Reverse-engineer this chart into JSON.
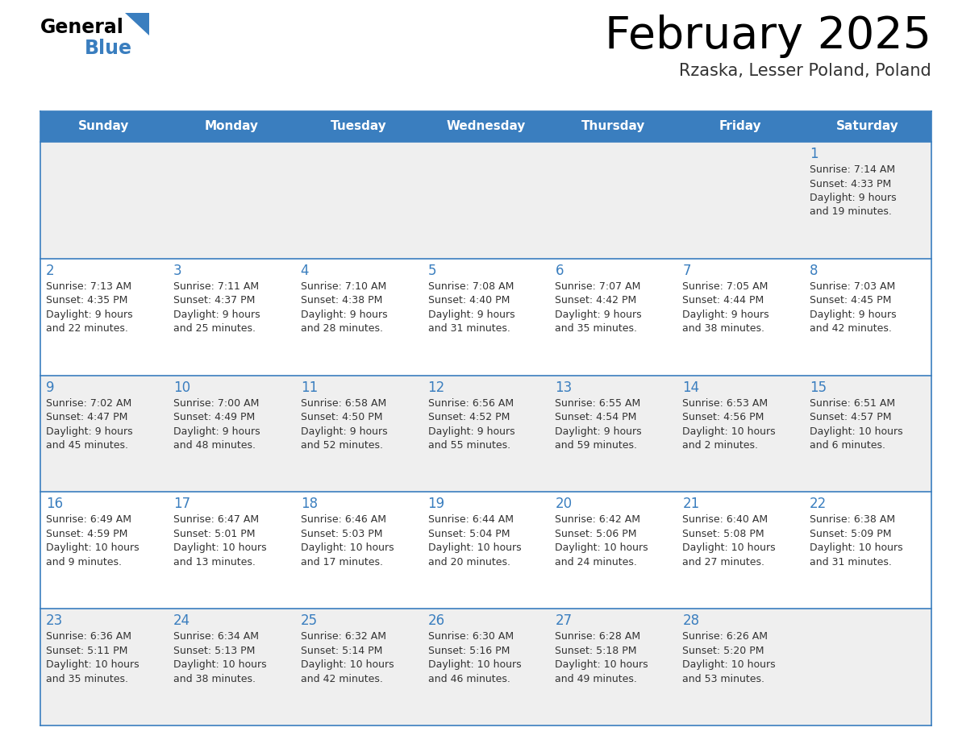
{
  "title": "February 2025",
  "subtitle": "Rzaska, Lesser Poland, Poland",
  "days_of_week": [
    "Sunday",
    "Monday",
    "Tuesday",
    "Wednesday",
    "Thursday",
    "Friday",
    "Saturday"
  ],
  "header_bg_color": "#3a7ebf",
  "header_text_color": "#ffffff",
  "border_color": "#3a7ebf",
  "text_color": "#333333",
  "day_number_color": "#3a7ebf",
  "title_color": "#000000",
  "subtitle_color": "#333333",
  "logo_general_color": "#000000",
  "logo_blue_color": "#3a7ebf",
  "row_bg_even": "#efefef",
  "row_bg_odd": "#ffffff",
  "calendar_data": [
    [
      null,
      null,
      null,
      null,
      null,
      null,
      {
        "day": "1",
        "sunrise": "7:14 AM",
        "sunset": "4:33 PM",
        "daylight_h": "9 hours",
        "daylight_m": "and 19 minutes."
      }
    ],
    [
      {
        "day": "2",
        "sunrise": "7:13 AM",
        "sunset": "4:35 PM",
        "daylight_h": "9 hours",
        "daylight_m": "and 22 minutes."
      },
      {
        "day": "3",
        "sunrise": "7:11 AM",
        "sunset": "4:37 PM",
        "daylight_h": "9 hours",
        "daylight_m": "and 25 minutes."
      },
      {
        "day": "4",
        "sunrise": "7:10 AM",
        "sunset": "4:38 PM",
        "daylight_h": "9 hours",
        "daylight_m": "and 28 minutes."
      },
      {
        "day": "5",
        "sunrise": "7:08 AM",
        "sunset": "4:40 PM",
        "daylight_h": "9 hours",
        "daylight_m": "and 31 minutes."
      },
      {
        "day": "6",
        "sunrise": "7:07 AM",
        "sunset": "4:42 PM",
        "daylight_h": "9 hours",
        "daylight_m": "and 35 minutes."
      },
      {
        "day": "7",
        "sunrise": "7:05 AM",
        "sunset": "4:44 PM",
        "daylight_h": "9 hours",
        "daylight_m": "and 38 minutes."
      },
      {
        "day": "8",
        "sunrise": "7:03 AM",
        "sunset": "4:45 PM",
        "daylight_h": "9 hours",
        "daylight_m": "and 42 minutes."
      }
    ],
    [
      {
        "day": "9",
        "sunrise": "7:02 AM",
        "sunset": "4:47 PM",
        "daylight_h": "9 hours",
        "daylight_m": "and 45 minutes."
      },
      {
        "day": "10",
        "sunrise": "7:00 AM",
        "sunset": "4:49 PM",
        "daylight_h": "9 hours",
        "daylight_m": "and 48 minutes."
      },
      {
        "day": "11",
        "sunrise": "6:58 AM",
        "sunset": "4:50 PM",
        "daylight_h": "9 hours",
        "daylight_m": "and 52 minutes."
      },
      {
        "day": "12",
        "sunrise": "6:56 AM",
        "sunset": "4:52 PM",
        "daylight_h": "9 hours",
        "daylight_m": "and 55 minutes."
      },
      {
        "day": "13",
        "sunrise": "6:55 AM",
        "sunset": "4:54 PM",
        "daylight_h": "9 hours",
        "daylight_m": "and 59 minutes."
      },
      {
        "day": "14",
        "sunrise": "6:53 AM",
        "sunset": "4:56 PM",
        "daylight_h": "10 hours",
        "daylight_m": "and 2 minutes."
      },
      {
        "day": "15",
        "sunrise": "6:51 AM",
        "sunset": "4:57 PM",
        "daylight_h": "10 hours",
        "daylight_m": "and 6 minutes."
      }
    ],
    [
      {
        "day": "16",
        "sunrise": "6:49 AM",
        "sunset": "4:59 PM",
        "daylight_h": "10 hours",
        "daylight_m": "and 9 minutes."
      },
      {
        "day": "17",
        "sunrise": "6:47 AM",
        "sunset": "5:01 PM",
        "daylight_h": "10 hours",
        "daylight_m": "and 13 minutes."
      },
      {
        "day": "18",
        "sunrise": "6:46 AM",
        "sunset": "5:03 PM",
        "daylight_h": "10 hours",
        "daylight_m": "and 17 minutes."
      },
      {
        "day": "19",
        "sunrise": "6:44 AM",
        "sunset": "5:04 PM",
        "daylight_h": "10 hours",
        "daylight_m": "and 20 minutes."
      },
      {
        "day": "20",
        "sunrise": "6:42 AM",
        "sunset": "5:06 PM",
        "daylight_h": "10 hours",
        "daylight_m": "and 24 minutes."
      },
      {
        "day": "21",
        "sunrise": "6:40 AM",
        "sunset": "5:08 PM",
        "daylight_h": "10 hours",
        "daylight_m": "and 27 minutes."
      },
      {
        "day": "22",
        "sunrise": "6:38 AM",
        "sunset": "5:09 PM",
        "daylight_h": "10 hours",
        "daylight_m": "and 31 minutes."
      }
    ],
    [
      {
        "day": "23",
        "sunrise": "6:36 AM",
        "sunset": "5:11 PM",
        "daylight_h": "10 hours",
        "daylight_m": "and 35 minutes."
      },
      {
        "day": "24",
        "sunrise": "6:34 AM",
        "sunset": "5:13 PM",
        "daylight_h": "10 hours",
        "daylight_m": "and 38 minutes."
      },
      {
        "day": "25",
        "sunrise": "6:32 AM",
        "sunset": "5:14 PM",
        "daylight_h": "10 hours",
        "daylight_m": "and 42 minutes."
      },
      {
        "day": "26",
        "sunrise": "6:30 AM",
        "sunset": "5:16 PM",
        "daylight_h": "10 hours",
        "daylight_m": "and 46 minutes."
      },
      {
        "day": "27",
        "sunrise": "6:28 AM",
        "sunset": "5:18 PM",
        "daylight_h": "10 hours",
        "daylight_m": "and 49 minutes."
      },
      {
        "day": "28",
        "sunrise": "6:26 AM",
        "sunset": "5:20 PM",
        "daylight_h": "10 hours",
        "daylight_m": "and 53 minutes."
      },
      null
    ]
  ]
}
